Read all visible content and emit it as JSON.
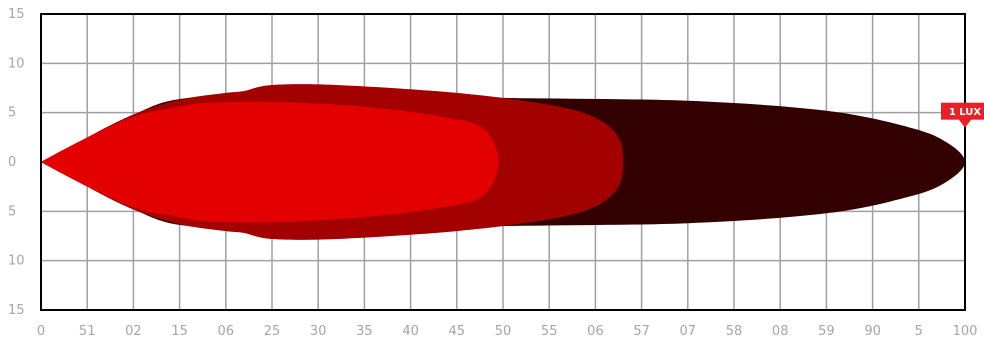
{
  "chart_data": {
    "type": "area",
    "title": "",
    "xlabel": "",
    "ylabel": "",
    "xlim": [
      0,
      100
    ],
    "ylim": [
      -15,
      15
    ],
    "grid": true,
    "x_tick_labels": [
      "0",
      "51",
      "02",
      "15",
      "06",
      "25",
      "30",
      "35",
      "40",
      "45",
      "50",
      "55",
      "06",
      "57",
      "07",
      "58",
      "08",
      "59",
      "90",
      "5",
      "100"
    ],
    "y_tick_labels": [
      "15",
      "10",
      "5",
      "0",
      "5",
      "10",
      "15"
    ],
    "annotation": "1 LUX",
    "series": [
      {
        "color": "#330000",
        "reach": 100,
        "upper": [
          [
            0,
            0
          ],
          [
            4,
            2
          ],
          [
            10,
            4.8
          ],
          [
            16,
            6.5
          ],
          [
            30,
            6.8
          ],
          [
            50,
            6.5
          ],
          [
            70,
            6.2
          ],
          [
            85,
            5.2
          ],
          [
            94,
            3.5
          ],
          [
            98,
            2
          ],
          [
            100,
            0
          ]
        ],
        "lower": [
          [
            0,
            0
          ],
          [
            4,
            -2
          ],
          [
            10,
            -4.8
          ],
          [
            16,
            -6.5
          ],
          [
            30,
            -6.8
          ],
          [
            50,
            -6.5
          ],
          [
            70,
            -6.2
          ],
          [
            85,
            -5.2
          ],
          [
            94,
            -3.5
          ],
          [
            98,
            -2
          ],
          [
            100,
            0
          ]
        ]
      },
      {
        "color": "#a30000",
        "reach": 63,
        "upper": [
          [
            0,
            0
          ],
          [
            4,
            2
          ],
          [
            10,
            4.8
          ],
          [
            15,
            6.3
          ],
          [
            20,
            7
          ],
          [
            22,
            7.2
          ],
          [
            25,
            7.8
          ],
          [
            32,
            7.8
          ],
          [
            45,
            7
          ],
          [
            55,
            5.8
          ],
          [
            60,
            4.5
          ],
          [
            62.5,
            2.5
          ],
          [
            63,
            0
          ]
        ],
        "lower": [
          [
            0,
            0
          ],
          [
            4,
            -2
          ],
          [
            10,
            -4.8
          ],
          [
            15,
            -6.3
          ],
          [
            20,
            -7
          ],
          [
            22,
            -7.2
          ],
          [
            25,
            -7.8
          ],
          [
            32,
            -7.8
          ],
          [
            45,
            -7
          ],
          [
            55,
            -5.8
          ],
          [
            60,
            -4.5
          ],
          [
            62.5,
            -2.5
          ],
          [
            63,
            0
          ]
        ]
      },
      {
        "color": "#e30000",
        "reach": 49.5,
        "upper": [
          [
            0,
            0
          ],
          [
            4,
            2
          ],
          [
            10,
            4.6
          ],
          [
            15,
            5.6
          ],
          [
            18,
            6
          ],
          [
            25,
            6.1
          ],
          [
            35,
            5.6
          ],
          [
            44,
            4.5
          ],
          [
            48,
            3.3
          ],
          [
            49.5,
            0
          ]
        ],
        "lower": [
          [
            0,
            0
          ],
          [
            4,
            -2
          ],
          [
            10,
            -4.6
          ],
          [
            15,
            -5.6
          ],
          [
            18,
            -6
          ],
          [
            25,
            -6.1
          ],
          [
            35,
            -5.6
          ],
          [
            44,
            -4.5
          ],
          [
            48,
            -3.3
          ],
          [
            49.5,
            0
          ]
        ]
      }
    ]
  }
}
